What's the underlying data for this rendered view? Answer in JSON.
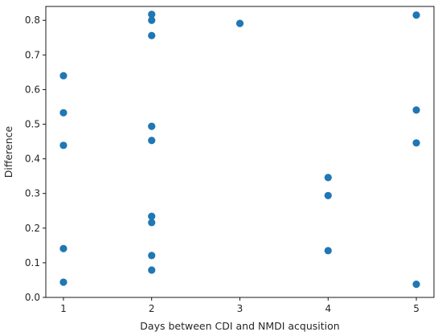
{
  "chart_data": {
    "type": "scatter",
    "title": "",
    "xlabel": "Days between CDI and NMDI acqusition",
    "ylabel": "Difference",
    "xlim": [
      0.8,
      5.2
    ],
    "ylim": [
      0.0,
      0.84
    ],
    "xticks": [
      1,
      2,
      3,
      4,
      5
    ],
    "xtick_labels": [
      "1",
      "2",
      "3",
      "4",
      "5"
    ],
    "yticks": [
      0.0,
      0.1,
      0.2,
      0.3,
      0.4,
      0.5,
      0.6,
      0.7,
      0.8
    ],
    "ytick_labels": [
      "0.0",
      "0.1",
      "0.2",
      "0.3",
      "0.4",
      "0.5",
      "0.6",
      "0.7",
      "0.8"
    ],
    "grid": false,
    "legend": "none",
    "marker_color": "#1f77b4",
    "series": [
      {
        "points": [
          {
            "x": 1,
            "y": 0.64
          },
          {
            "x": 1,
            "y": 0.533
          },
          {
            "x": 1,
            "y": 0.439
          },
          {
            "x": 1,
            "y": 0.141
          },
          {
            "x": 1,
            "y": 0.044
          },
          {
            "x": 2,
            "y": 0.817
          },
          {
            "x": 2,
            "y": 0.8
          },
          {
            "x": 2,
            "y": 0.756
          },
          {
            "x": 2,
            "y": 0.494
          },
          {
            "x": 2,
            "y": 0.453
          },
          {
            "x": 2,
            "y": 0.234
          },
          {
            "x": 2,
            "y": 0.216
          },
          {
            "x": 2,
            "y": 0.121
          },
          {
            "x": 2,
            "y": 0.079
          },
          {
            "x": 3,
            "y": 0.791
          },
          {
            "x": 4,
            "y": 0.346
          },
          {
            "x": 4,
            "y": 0.294
          },
          {
            "x": 4,
            "y": 0.135
          },
          {
            "x": 5,
            "y": 0.815
          },
          {
            "x": 5,
            "y": 0.541
          },
          {
            "x": 5,
            "y": 0.446
          },
          {
            "x": 5,
            "y": 0.038
          }
        ]
      }
    ]
  }
}
